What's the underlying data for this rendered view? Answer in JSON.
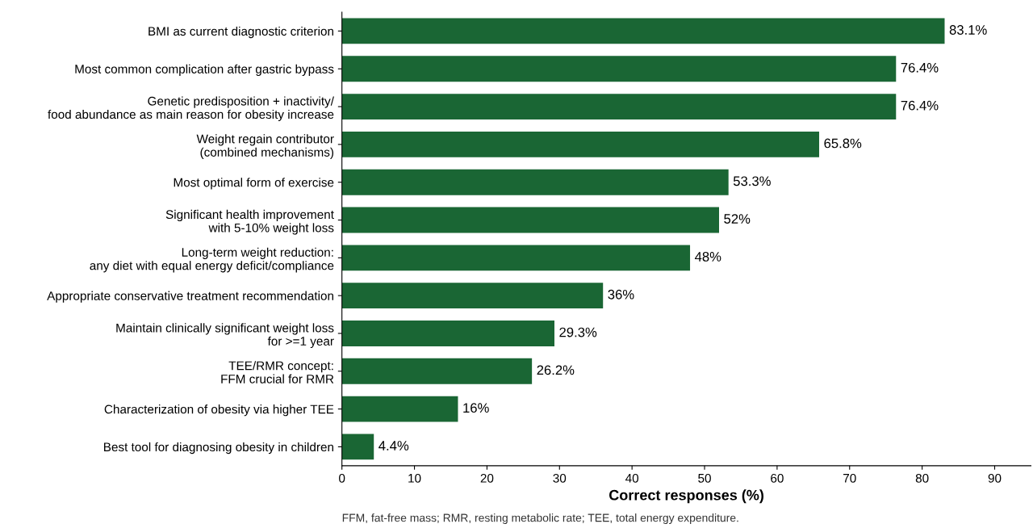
{
  "chart_data": {
    "type": "bar",
    "orientation": "horizontal",
    "xlabel": "Correct responses (%)",
    "categories": [
      "BMI as current diagnostic criterion",
      "Most common complication after gastric bypass",
      "Genetic predisposition + inactivity/\nfood abundance as main reason for obesity increase",
      "Weight regain contributor\n(combined mechanisms)",
      "Most optimal form of exercise",
      "Significant health improvement\nwith 5-10% weight loss",
      "Long-term weight reduction:\nany diet with equal energy deficit/compliance",
      "Appropriate conservative treatment recommendation",
      "Maintain clinically significant weight loss\nfor >=1 year",
      "TEE/RMR concept:\nFFM crucial for RMR",
      "Characterization of obesity via higher TEE",
      "Best tool for diagnosing obesity in children"
    ],
    "values": [
      83.1,
      76.4,
      76.4,
      65.8,
      53.3,
      52,
      48,
      36,
      29.3,
      26.2,
      16,
      4.4
    ],
    "value_labels": [
      "83.1%",
      "76.4%",
      "76.4%",
      "65.8%",
      "53.3%",
      "52%",
      "48%",
      "36%",
      "29.3%",
      "26.2%",
      "16%",
      "4.4%"
    ],
    "color": "#1a6634",
    "xlim": [
      0,
      95
    ],
    "xticks": [
      0,
      10,
      20,
      30,
      40,
      50,
      60,
      70,
      80,
      90
    ],
    "grid": false,
    "annotations": [
      "FFM, fat-free mass; RMR, resting metabolic rate; TEE, total energy expenditure."
    ]
  }
}
